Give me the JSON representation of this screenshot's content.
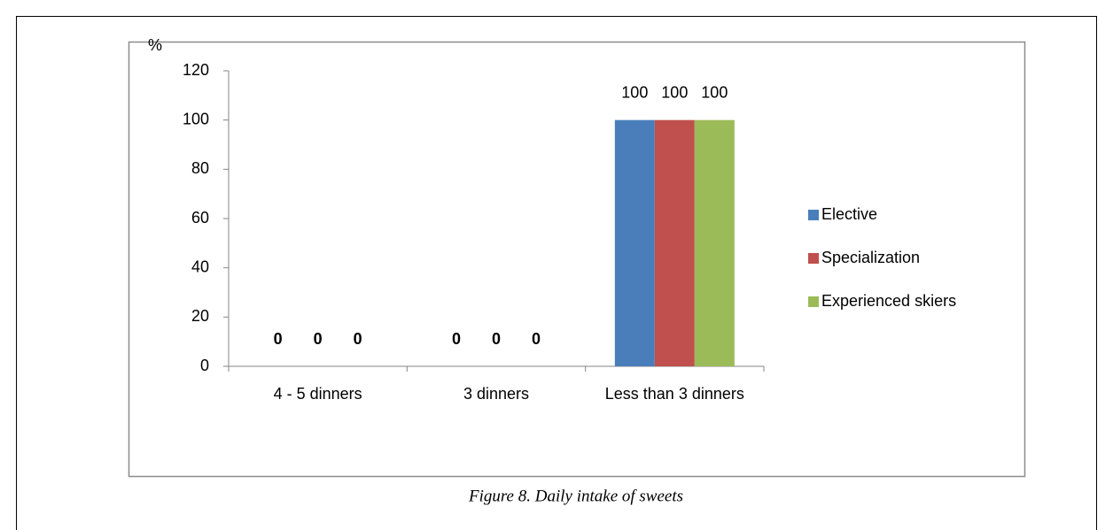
{
  "chart_data": {
    "type": "bar",
    "caption": "Figure 8. Daily intake of sweets",
    "ylabel": "%",
    "categories": [
      "4 - 5 dinners",
      "3 dinners",
      "Less than 3 dinners"
    ],
    "series": [
      {
        "name": "Elective",
        "color": "#4a7ebb",
        "values": [
          0,
          0,
          100
        ]
      },
      {
        "name": "Specialization",
        "color": "#c0504d",
        "values": [
          0,
          0,
          100
        ]
      },
      {
        "name": "Experienced skiers",
        "color": "#9bbb59",
        "values": [
          0,
          0,
          100
        ]
      }
    ],
    "ylim": [
      0,
      120
    ],
    "yticks": [
      0,
      20,
      40,
      60,
      80,
      100,
      120
    ],
    "legend": "right"
  }
}
